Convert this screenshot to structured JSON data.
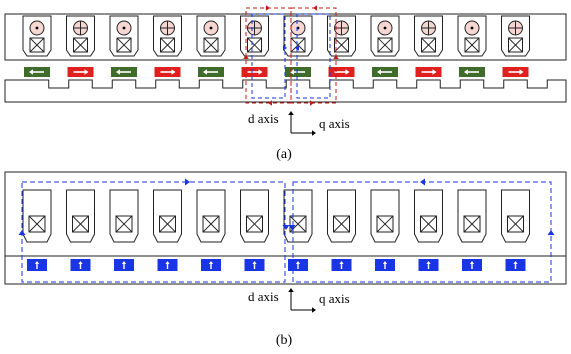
{
  "panels": [
    {
      "id": "a",
      "label": "(a)",
      "d_axis": "d axis",
      "q_axis": "q axis"
    },
    {
      "id": "b",
      "label": "(b)",
      "d_axis": "d axis",
      "q_axis": "q axis"
    }
  ],
  "panel_a": {
    "conductor_symbols": [
      "dot",
      "plus",
      "dot",
      "plus",
      "dot",
      "plus",
      "dot",
      "plus",
      "dot",
      "plus",
      "dot",
      "plus"
    ],
    "magnet_colors": [
      "green",
      "red",
      "green",
      "red",
      "green",
      "red",
      "green",
      "red",
      "green",
      "red",
      "green",
      "red"
    ],
    "magnet_arrows": [
      "left",
      "right",
      "left",
      "right",
      "left",
      "right",
      "left",
      "right",
      "left",
      "right",
      "left",
      "right"
    ]
  },
  "panel_b": {
    "magnet_count": 12,
    "magnet_arrow": "up"
  },
  "colors": {
    "red": "#e0201e",
    "green": "#3f6b2b",
    "blue": "#1a35e6",
    "flux_red": "#c41a1a",
    "flux_blue": "#1a35e6",
    "conductor_fill": "#f6d6d0",
    "outline": "#222222"
  },
  "icons": [
    "dot-conductor-icon",
    "cross-conductor-icon",
    "magnet-arrow-icon",
    "flux-arrow-icon"
  ]
}
